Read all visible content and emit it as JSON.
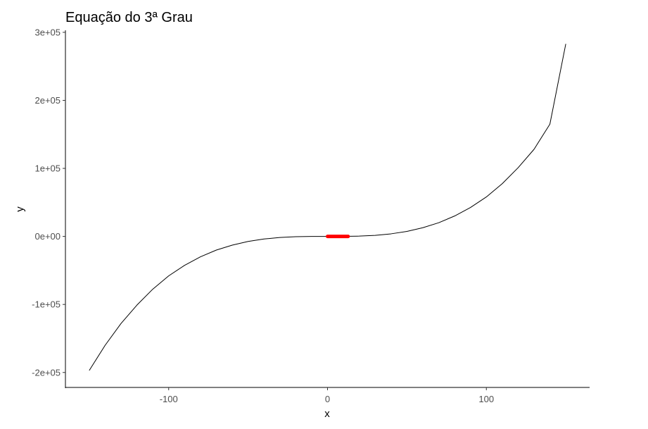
{
  "chart_data": {
    "type": "line",
    "title": "Equação do 3ª Grau",
    "xlabel": "x",
    "ylabel": "y",
    "xlim": [
      -165,
      165
    ],
    "ylim": [
      -222000,
      303000
    ],
    "x_ticks": [
      {
        "value": -100,
        "label": "-100"
      },
      {
        "value": 0,
        "label": "0"
      },
      {
        "value": 100,
        "label": "100"
      }
    ],
    "y_ticks": [
      {
        "value": -200000,
        "label": "-2e+05"
      },
      {
        "value": -100000,
        "label": "-1e+05"
      },
      {
        "value": 0,
        "label": "0e+00"
      },
      {
        "value": 100000,
        "label": "1e+05"
      },
      {
        "value": 200000,
        "label": "2e+05"
      },
      {
        "value": 300000,
        "label": "3e+05"
      }
    ],
    "grid": false,
    "series": [
      {
        "style": "line",
        "color": "#000000",
        "x": [
          -150,
          -140,
          -130,
          -120,
          -110,
          -100,
          -90,
          -80,
          -70,
          -60,
          -50,
          -40,
          -30,
          -20,
          -10,
          0,
          10,
          20,
          30,
          40,
          50,
          60,
          70,
          80,
          90,
          100,
          110,
          120,
          130,
          140,
          150
        ],
        "y": [
          -197000,
          -160000,
          -128000,
          -101000,
          -77500,
          -58000,
          -42500,
          -30000,
          -20100,
          -12800,
          -7400,
          -3800,
          -1600,
          -450,
          -50,
          0,
          50,
          450,
          1600,
          3800,
          7400,
          12800,
          20100,
          30000,
          42500,
          58000,
          77500,
          101000,
          128000,
          165000,
          283000
        ]
      },
      {
        "style": "highlight",
        "color": "#ff0000",
        "x": [
          0,
          13
        ],
        "y": [
          0,
          0
        ]
      }
    ]
  }
}
